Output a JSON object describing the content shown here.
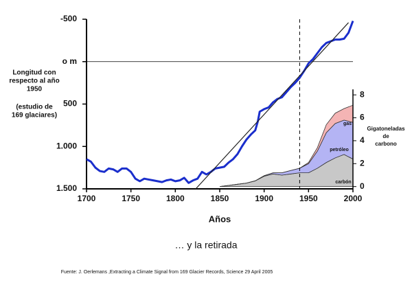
{
  "chart_data": {
    "type": "line",
    "title": "… y la retirada",
    "source": "Fuente: J. Oerlemans ,Extracting a Climate Signal from 169 Glacier Records, Science 29 April 2005",
    "xlabel": "Años",
    "ylabel": [
      "Longitud con",
      "respecto al año",
      "1950",
      "(estudio de",
      "169 glaciares)"
    ],
    "y2label": [
      "Gigatoneladas",
      "de",
      "carbono"
    ],
    "xlim": [
      1700,
      2000
    ],
    "xticks": [
      1700,
      1750,
      1800,
      1850,
      1900,
      1950,
      2000
    ],
    "ylim": [
      1500,
      -500
    ],
    "yticks": [
      -500,
      {
        "value": 0,
        "label": "o m"
      },
      500,
      {
        "value": 1000,
        "label": "1.000"
      },
      {
        "value": 1500,
        "label": "1.500"
      }
    ],
    "y2lim": [
      -0.2,
      14.6
    ],
    "y2ticks": [
      0,
      2,
      4,
      6,
      8
    ],
    "hlines": [
      0
    ],
    "vlines": [
      1940
    ],
    "series": [
      {
        "color": "#1a2ecc",
        "style": "line",
        "x": [
          1700,
          1705,
          1710,
          1715,
          1720,
          1725,
          1730,
          1735,
          1740,
          1745,
          1750,
          1755,
          1760,
          1765,
          1770,
          1775,
          1780,
          1785,
          1790,
          1795,
          1800,
          1805,
          1810,
          1815,
          1820,
          1825,
          1830,
          1835,
          1840,
          1845,
          1850,
          1855,
          1860,
          1865,
          1870,
          1875,
          1880,
          1885,
          1890,
          1893,
          1895,
          1900,
          1905,
          1910,
          1915,
          1920,
          1925,
          1930,
          1935,
          1940,
          1945,
          1950,
          1955,
          1960,
          1965,
          1970,
          1975,
          1980,
          1985,
          1990,
          1995,
          2000
        ],
        "values": [
          1150,
          1180,
          1250,
          1290,
          1300,
          1260,
          1270,
          1300,
          1260,
          1260,
          1300,
          1380,
          1410,
          1380,
          1390,
          1400,
          1410,
          1420,
          1400,
          1390,
          1410,
          1400,
          1370,
          1430,
          1400,
          1380,
          1300,
          1330,
          1300,
          1260,
          1250,
          1240,
          1190,
          1150,
          1090,
          1000,
          920,
          860,
          810,
          700,
          590,
          560,
          540,
          480,
          440,
          420,
          360,
          300,
          250,
          190,
          110,
          20,
          -30,
          -100,
          -170,
          -220,
          -240,
          -260,
          -260,
          -270,
          -340,
          -480
        ]
      },
      {
        "color": "#222222",
        "style": "trend",
        "x": [
          1823,
          1995
        ],
        "values": [
          1500,
          -460
        ]
      },
      {
        "name": "carbón",
        "color": "#c8c8c8",
        "style": "stack",
        "axis": "y2",
        "x": [
          1850,
          1860,
          1870,
          1880,
          1890,
          1900,
          1910,
          1920,
          1930,
          1940,
          1950,
          1960,
          1970,
          1980,
          1990,
          2000
        ],
        "values": [
          0,
          0.1,
          0.2,
          0.3,
          0.5,
          0.9,
          1.1,
          1.0,
          1.1,
          1.2,
          1.2,
          1.6,
          2.1,
          2.5,
          2.8,
          2.4
        ]
      },
      {
        "name": "petróleo",
        "color": "#b4b4f4",
        "style": "stack",
        "axis": "y2",
        "x": [
          1850,
          1860,
          1870,
          1880,
          1890,
          1900,
          1910,
          1920,
          1930,
          1940,
          1950,
          1960,
          1970,
          1980,
          1990,
          2000
        ],
        "values": [
          0,
          0,
          0,
          0,
          0,
          0.05,
          0.1,
          0.2,
          0.3,
          0.4,
          0.8,
          1.5,
          2.6,
          3.0,
          3.0,
          3.2
        ]
      },
      {
        "name": "gas",
        "color": "#f4b4b4",
        "style": "stack",
        "axis": "y2",
        "x": [
          1850,
          1860,
          1870,
          1880,
          1890,
          1900,
          1910,
          1920,
          1930,
          1940,
          1950,
          1960,
          1970,
          1980,
          1990,
          2000
        ],
        "values": [
          0,
          0,
          0,
          0,
          0,
          0,
          0,
          0,
          0,
          0,
          0.1,
          0.3,
          0.7,
          0.9,
          1.0,
          1.5
        ]
      }
    ]
  }
}
